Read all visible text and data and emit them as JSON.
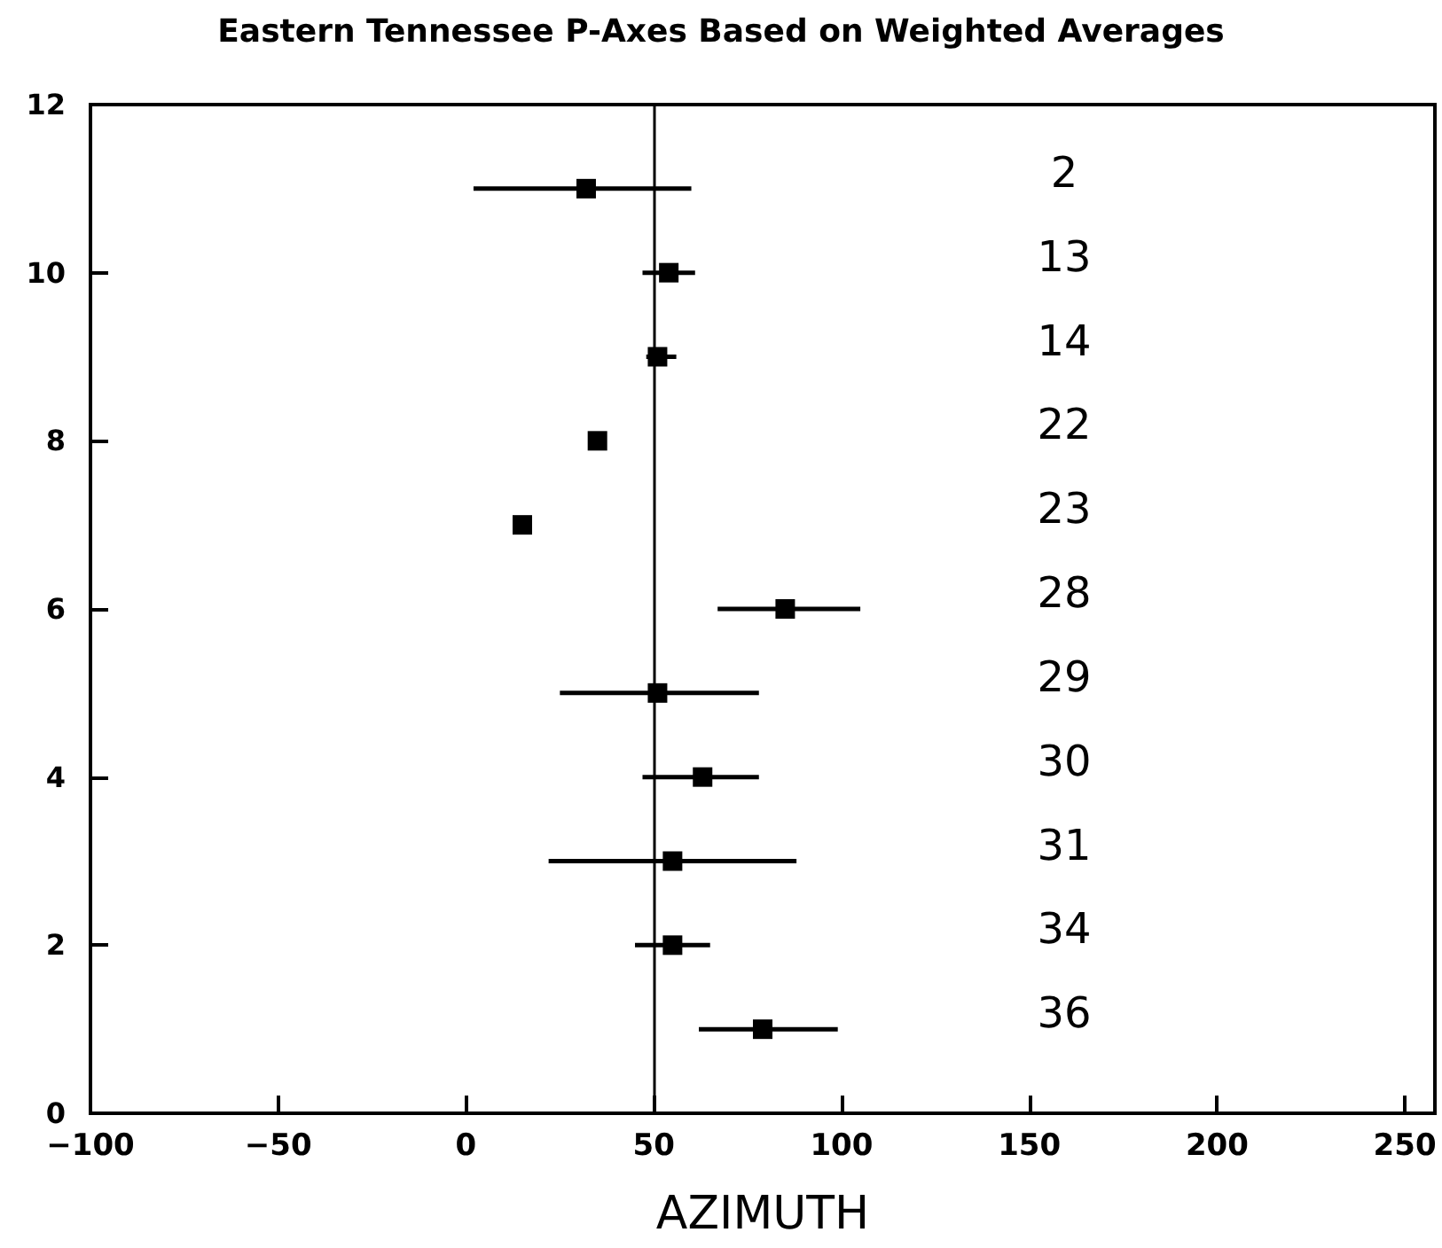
{
  "chart_data": {
    "type": "scatter",
    "title": "Eastern Tennessee P-Axes Based on Weighted Averages",
    "xlabel": "AZIMUTH",
    "x": [
      32,
      54,
      51,
      35,
      15,
      85,
      51,
      63,
      55,
      55,
      79
    ],
    "values": [
      11,
      10,
      9,
      8,
      7,
      6,
      5,
      4,
      3,
      2,
      1
    ],
    "xerrors": [
      [
        2,
        60
      ],
      [
        47,
        61
      ],
      [
        48,
        56
      ],
      null,
      null,
      [
        67,
        105
      ],
      [
        25,
        78
      ],
      [
        47,
        78
      ],
      [
        22,
        88
      ],
      [
        45,
        65
      ],
      [
        62,
        99
      ]
    ],
    "color": "#000000",
    "marker": "square",
    "xlim": [
      -100,
      258
    ],
    "xticks": [
      -100,
      -50,
      0,
      50,
      100,
      150,
      200,
      250
    ],
    "ylim": [
      0,
      12
    ],
    "yticks": [
      0,
      2,
      4,
      6,
      8,
      10,
      12
    ],
    "grid": false,
    "ref_lines": [
      {
        "axis": "x",
        "value": 50,
        "color": "#000000"
      }
    ],
    "annotations": [
      "2",
      "13",
      "14",
      "22",
      "23",
      "28",
      "29",
      "30",
      "31",
      "34",
      "36"
    ]
  }
}
